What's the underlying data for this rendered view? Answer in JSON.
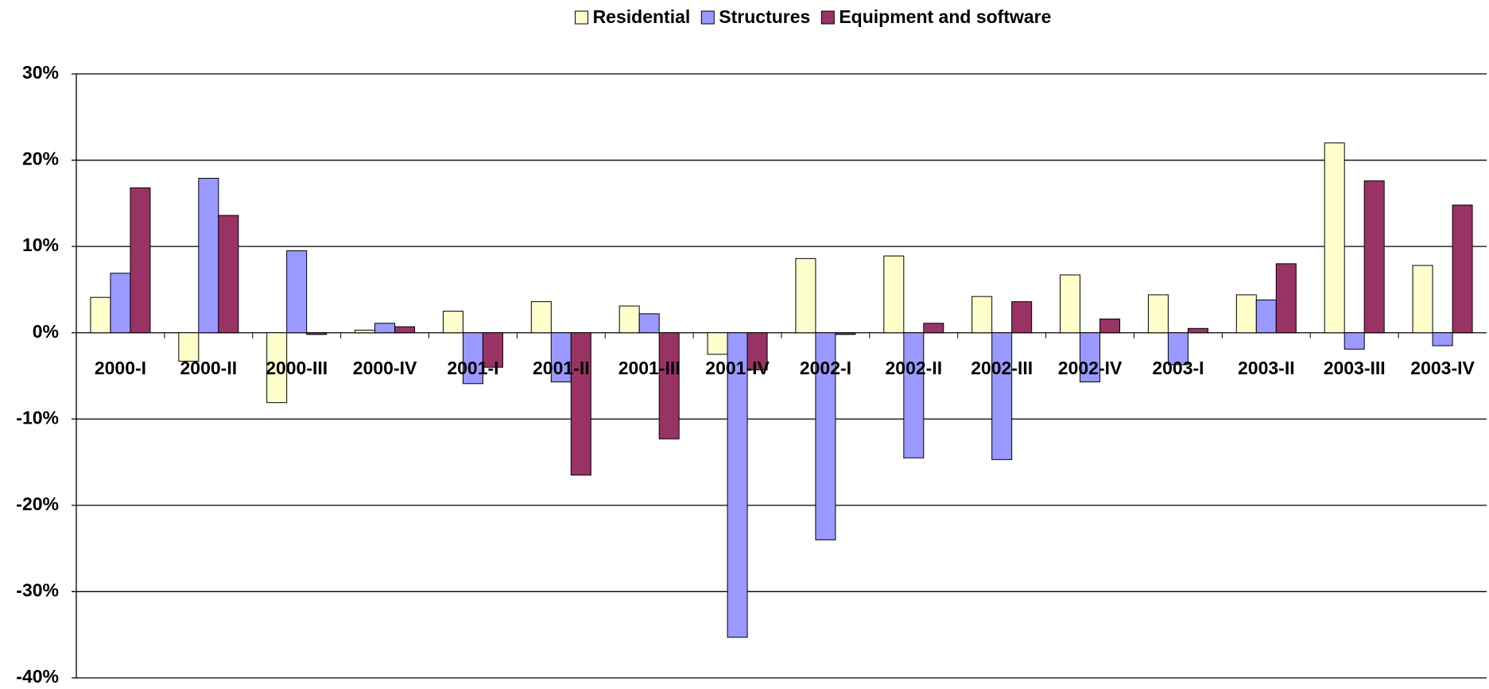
{
  "chart_data": {
    "type": "bar",
    "categories": [
      "2000-I",
      "2000-II",
      "2000-III",
      "2000-IV",
      "2001-I",
      "2001-II",
      "2001-III",
      "2001-IV",
      "2002-I",
      "2002-II",
      "2002-III",
      "2002-IV",
      "2003-I",
      "2003-II",
      "2003-III",
      "2003-IV"
    ],
    "series": [
      {
        "name": "Residential",
        "color": "#ffffcc",
        "values": [
          4.1,
          -3.3,
          -8.1,
          0.3,
          2.5,
          3.6,
          3.1,
          -2.5,
          8.6,
          8.9,
          4.2,
          6.7,
          4.4,
          4.4,
          22.0,
          7.8
        ]
      },
      {
        "name": "Structures",
        "color": "#9999ff",
        "values": [
          6.9,
          17.9,
          9.5,
          1.1,
          -5.9,
          -5.7,
          2.2,
          -35.3,
          -24.0,
          -14.5,
          -14.7,
          -5.7,
          -3.7,
          3.8,
          -1.9,
          -1.5
        ]
      },
      {
        "name": "Equipment and software",
        "color": "#993366",
        "values": [
          16.8,
          13.6,
          -0.2,
          0.7,
          -4.0,
          -16.5,
          -12.3,
          -4.3,
          -0.2,
          1.1,
          3.6,
          1.6,
          0.5,
          8.0,
          17.6,
          14.8
        ]
      }
    ],
    "ylim": [
      -40,
      30
    ],
    "yticks": [
      {
        "value": -40,
        "label": "-40%"
      },
      {
        "value": -30,
        "label": "-30%"
      },
      {
        "value": -20,
        "label": "-20%"
      },
      {
        "value": -10,
        "label": "-10%"
      },
      {
        "value": 0,
        "label": "0%"
      },
      {
        "value": 10,
        "label": "10%"
      },
      {
        "value": 20,
        "label": "20%"
      },
      {
        "value": 30,
        "label": "30%"
      }
    ],
    "grid": true,
    "legend": "top"
  }
}
